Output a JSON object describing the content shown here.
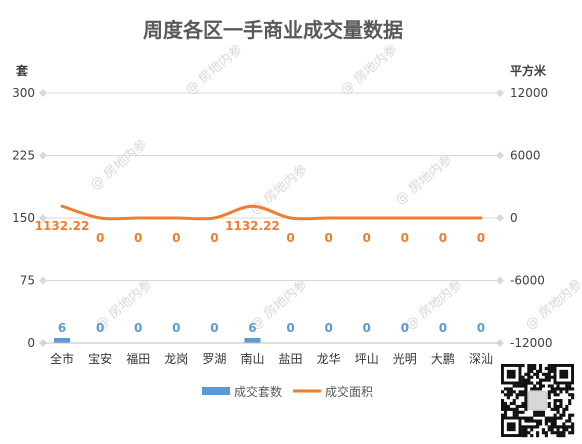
{
  "chart_data": {
    "type": "bar",
    "title": "周度各区一手商业成交量数据",
    "categories": [
      "全市",
      "宝安",
      "福田",
      "龙岗",
      "罗湖",
      "南山",
      "盐田",
      "龙华",
      "坪山",
      "光明",
      "大鹏",
      "深汕"
    ],
    "series": [
      {
        "name": "成交套数",
        "type": "bar",
        "axis": "left",
        "color": "#5B9BD5",
        "values": [
          6,
          0,
          0,
          0,
          0,
          6,
          0,
          0,
          0,
          0,
          0,
          0
        ],
        "labels": [
          "6",
          "0",
          "0",
          "0",
          "0",
          "6",
          "0",
          "0",
          "0",
          "0",
          "0",
          "0"
        ]
      },
      {
        "name": "成交面积",
        "type": "line",
        "axis": "right",
        "color": "#ED7D31",
        "values": [
          1132.22,
          0,
          0,
          0,
          0,
          1132.22,
          0,
          0,
          0,
          0,
          0,
          0
        ],
        "labels": [
          "1132.22",
          "0",
          "0",
          "0",
          "0",
          "1132.22",
          "0",
          "0",
          "0",
          "0",
          "0",
          "0"
        ]
      }
    ],
    "y_left": {
      "unit": "套",
      "ylim": [
        0,
        300
      ],
      "ticks": [
        0,
        75,
        150,
        225,
        300
      ]
    },
    "y_right": {
      "unit": "平方米",
      "ylim": [
        -12000,
        12000
      ],
      "ticks": [
        -12000,
        -6000,
        0,
        6000,
        12000
      ]
    },
    "grid": true,
    "legend_position": "bottom",
    "watermark": "房地内参"
  }
}
